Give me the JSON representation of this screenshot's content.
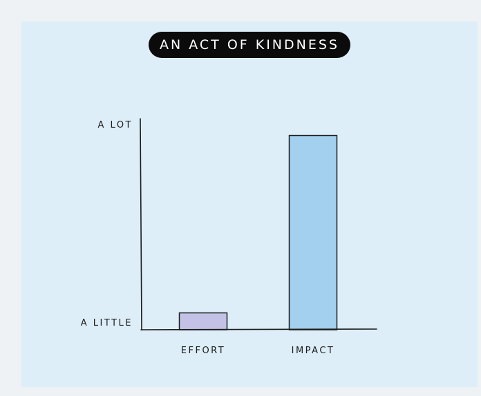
{
  "chart_data": {
    "type": "bar",
    "title": "AN ACT OF KINDNESS",
    "categories": [
      "EFFORT",
      "IMPACT"
    ],
    "values": [
      0.08,
      0.92
    ],
    "y_tick_labels": [
      "A LITTLE",
      "A LOT"
    ],
    "ylim": [
      0,
      1
    ],
    "grid": false,
    "colors": {
      "EFFORT": "#c3c2e6",
      "IMPACT": "#a3d0ee"
    }
  },
  "colors": {
    "page_background": "#eef2f4",
    "panel_background": "#ddeef8",
    "title_pill": "#0b0b0b",
    "axis": "#1a1a1a"
  }
}
